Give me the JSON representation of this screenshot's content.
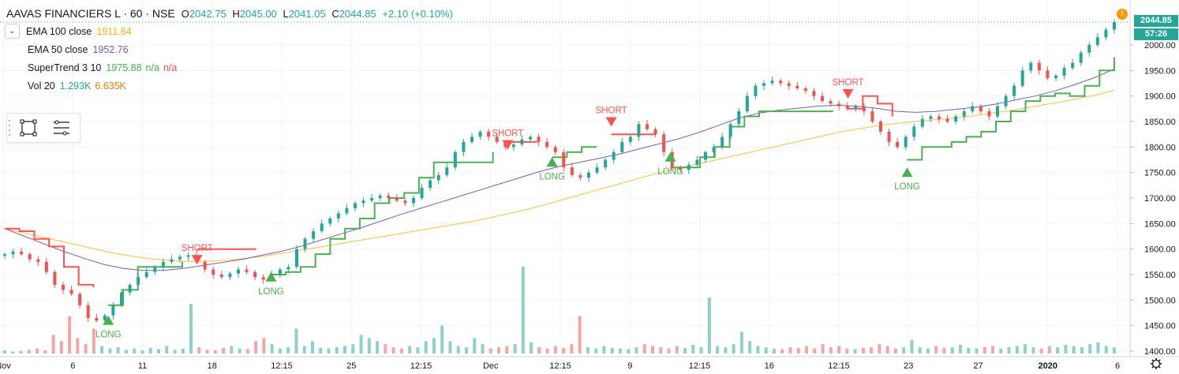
{
  "header": {
    "symbol": "AAVAS FINANCIERS L · 60 · NSE",
    "ohlc": [
      {
        "label": "O",
        "value": "2042.75"
      },
      {
        "label": "H",
        "value": "2045.00"
      },
      {
        "label": "L",
        "value": "2041.05"
      },
      {
        "label": "C",
        "value": "2044.85"
      }
    ],
    "change": "+2.10 (+0.10%)"
  },
  "indicators": [
    {
      "name": "EMA 100 close",
      "values": [
        "1911.64"
      ],
      "colors": [
        "#f5b100"
      ]
    },
    {
      "name": "EMA 50 close",
      "values": [
        "1952.76"
      ],
      "colors": [
        "#7e57c2"
      ]
    },
    {
      "name": "SuperTrend 3 10",
      "values": [
        "1975.88",
        "n/a",
        "n/a"
      ],
      "colors": [
        "#4caf50",
        "#4caf50",
        "#ef5350"
      ]
    },
    {
      "name": "Vol 20",
      "values": [
        "1.293K",
        "6.635K"
      ],
      "colors": [
        "#26a69a",
        "#f57c00"
      ]
    }
  ],
  "price_badges": {
    "last_price": "2044.85",
    "countdown": "57:26"
  },
  "alert_icon": "!",
  "colors": {
    "up": "#26a69a",
    "down": "#ef5350",
    "ema100": "#f5c242",
    "ema50": "#7e57c2",
    "st_up": "#4caf50",
    "st_down": "#ff5252",
    "vol_up": "#8fd1c7",
    "vol_down": "#f4a5a5",
    "badge": "#26a69a"
  },
  "chart_data": {
    "type": "candlestick",
    "title": "AAVAS FINANCIERS L · 60 · NSE",
    "ylim": [
      1390,
      2080
    ],
    "y_ticks": [
      "2000.00",
      "1950.00",
      "1900.00",
      "1850.00",
      "1800.00",
      "1750.00",
      "1700.00",
      "1650.00",
      "1600.00",
      "1550.00",
      "1500.00",
      "1450.00",
      "1400.00"
    ],
    "x_tick_labels": [
      "Nov",
      "6",
      "11",
      "18",
      "12:15",
      "25",
      "12:15",
      "Dec",
      "12:15",
      "9",
      "12:15",
      "16",
      "12:15",
      "23",
      "27",
      "2020",
      "6"
    ],
    "close_series": [
      1590,
      1595,
      1590,
      1580,
      1575,
      1555,
      1530,
      1520,
      1512,
      1490,
      1465,
      1460,
      1470,
      1490,
      1515,
      1530,
      1545,
      1555,
      1565,
      1575,
      1580,
      1585,
      1588,
      1575,
      1560,
      1550,
      1545,
      1552,
      1560,
      1555,
      1545,
      1540,
      1550,
      1560,
      1565,
      1600,
      1620,
      1635,
      1650,
      1660,
      1670,
      1680,
      1690,
      1695,
      1700,
      1705,
      1700,
      1695,
      1690,
      1700,
      1720,
      1735,
      1745,
      1760,
      1790,
      1810,
      1820,
      1830,
      1820,
      1810,
      1800,
      1805,
      1815,
      1820,
      1810,
      1800,
      1790,
      1760,
      1745,
      1740,
      1750,
      1760,
      1775,
      1790,
      1810,
      1820,
      1845,
      1835,
      1825,
      1790,
      1760,
      1755,
      1765,
      1775,
      1790,
      1800,
      1820,
      1845,
      1870,
      1900,
      1920,
      1925,
      1930,
      1925,
      1920,
      1915,
      1910,
      1900,
      1890,
      1885,
      1880,
      1875,
      1880,
      1870,
      1850,
      1830,
      1810,
      1800,
      1820,
      1840,
      1855,
      1860,
      1855,
      1850,
      1860,
      1870,
      1880,
      1870,
      1860,
      1880,
      1900,
      1920,
      1950,
      1965,
      1950,
      1935,
      1940,
      1955,
      1965,
      1985,
      2000,
      2015,
      2030,
      2044.85
    ],
    "ema100": [
      1640,
      1632,
      1624,
      1616,
      1608,
      1600,
      1592,
      1586,
      1581,
      1578,
      1576,
      1576,
      1578,
      1581,
      1585,
      1590,
      1596,
      1602,
      1608,
      1614,
      1620,
      1626,
      1632,
      1638,
      1644,
      1650,
      1656,
      1664,
      1672,
      1680,
      1690,
      1700,
      1710,
      1720,
      1730,
      1740,
      1750,
      1758,
      1766,
      1774,
      1782,
      1790,
      1798,
      1806,
      1814,
      1822,
      1830,
      1836,
      1842,
      1846,
      1850,
      1853,
      1856,
      1860,
      1865,
      1870,
      1876,
      1882,
      1888,
      1895,
      1902,
      1911.64
    ],
    "ema50": [
      1640,
      1625,
      1610,
      1595,
      1582,
      1570,
      1562,
      1558,
      1558,
      1562,
      1568,
      1574,
      1580,
      1588,
      1596,
      1606,
      1618,
      1630,
      1642,
      1655,
      1668,
      1680,
      1692,
      1704,
      1716,
      1728,
      1740,
      1752,
      1762,
      1770,
      1778,
      1786,
      1796,
      1806,
      1816,
      1828,
      1842,
      1856,
      1866,
      1872,
      1876,
      1880,
      1882,
      1880,
      1876,
      1870,
      1868,
      1870,
      1874,
      1878,
      1884,
      1892,
      1900,
      1910,
      1922,
      1936,
      1952.76
    ],
    "supertrend_segments": [
      {
        "trend": "down",
        "values": [
          1640,
          1635,
          1620,
          1605,
          1565,
          1530,
          1525
        ]
      },
      {
        "trend": "up",
        "values": [
          1490,
          1520,
          1565,
          1565,
          1565,
          1575
        ]
      },
      {
        "trend": "down",
        "values": [
          1600,
          1600,
          1600,
          1600,
          1600
        ]
      },
      {
        "trend": "up",
        "values": [
          1550,
          1555,
          1565,
          1590,
          1620,
          1640,
          1660,
          1690,
          1700,
          1710,
          1740,
          1770,
          1770,
          1770,
          1770,
          1790
        ]
      },
      {
        "trend": "down",
        "values": [
          1810,
          1810,
          1810
        ]
      },
      {
        "trend": "up",
        "values": [
          1780,
          1790,
          1800,
          1800
        ]
      },
      {
        "trend": "down",
        "values": [
          1825,
          1825,
          1825,
          1825
        ]
      },
      {
        "trend": "up",
        "values": [
          1760,
          1760,
          1780,
          1800,
          1840,
          1860,
          1870,
          1870,
          1870,
          1870,
          1870,
          1870
        ]
      },
      {
        "trend": "down",
        "values": [
          1875,
          1900,
          1885,
          1860
        ]
      },
      {
        "trend": "up",
        "values": [
          1775,
          1800,
          1800,
          1810,
          1820,
          1830,
          1850,
          1870,
          1890,
          1900,
          1905,
          1900,
          1920,
          1950,
          1975.88
        ]
      }
    ],
    "signals": [
      {
        "type": "LONG",
        "price": 1470
      },
      {
        "type": "SHORT",
        "price": 1570
      },
      {
        "type": "LONG",
        "price": 1555
      },
      {
        "type": "SHORT",
        "price": 1795
      },
      {
        "type": "LONG",
        "price": 1780
      },
      {
        "type": "SHORT",
        "price": 1840
      },
      {
        "type": "LONG",
        "price": 1790
      },
      {
        "type": "SHORT",
        "price": 1895
      },
      {
        "type": "LONG",
        "price": 1760
      }
    ],
    "volume": [
      5,
      3,
      4,
      6,
      8,
      5,
      30,
      20,
      60,
      25,
      15,
      40,
      12,
      8,
      10,
      6,
      8,
      5,
      9,
      7,
      12,
      6,
      8,
      80,
      10,
      6,
      5,
      9,
      12,
      8,
      7,
      20,
      25,
      15,
      8,
      10,
      40,
      12,
      20,
      9,
      8,
      10,
      12,
      15,
      30,
      25,
      20,
      15,
      10,
      8,
      12,
      10,
      20,
      25,
      45,
      20,
      12,
      10,
      25,
      15,
      8,
      10,
      12,
      15,
      140,
      18,
      10,
      8,
      12,
      9,
      15,
      60,
      10,
      8,
      12,
      9,
      8,
      7,
      10,
      15,
      12,
      10,
      8,
      12,
      9,
      14,
      10,
      90,
      12,
      10,
      15,
      35,
      20,
      12,
      10,
      8,
      7,
      10,
      9,
      12,
      8,
      15,
      10,
      12,
      8,
      7,
      9,
      10,
      15,
      12,
      8,
      10,
      22,
      10,
      8,
      12,
      9,
      10,
      14,
      9,
      8,
      10,
      12,
      8,
      10,
      12,
      15,
      10,
      8,
      12,
      10,
      14,
      12,
      10,
      15,
      18,
      12,
      10
    ]
  }
}
